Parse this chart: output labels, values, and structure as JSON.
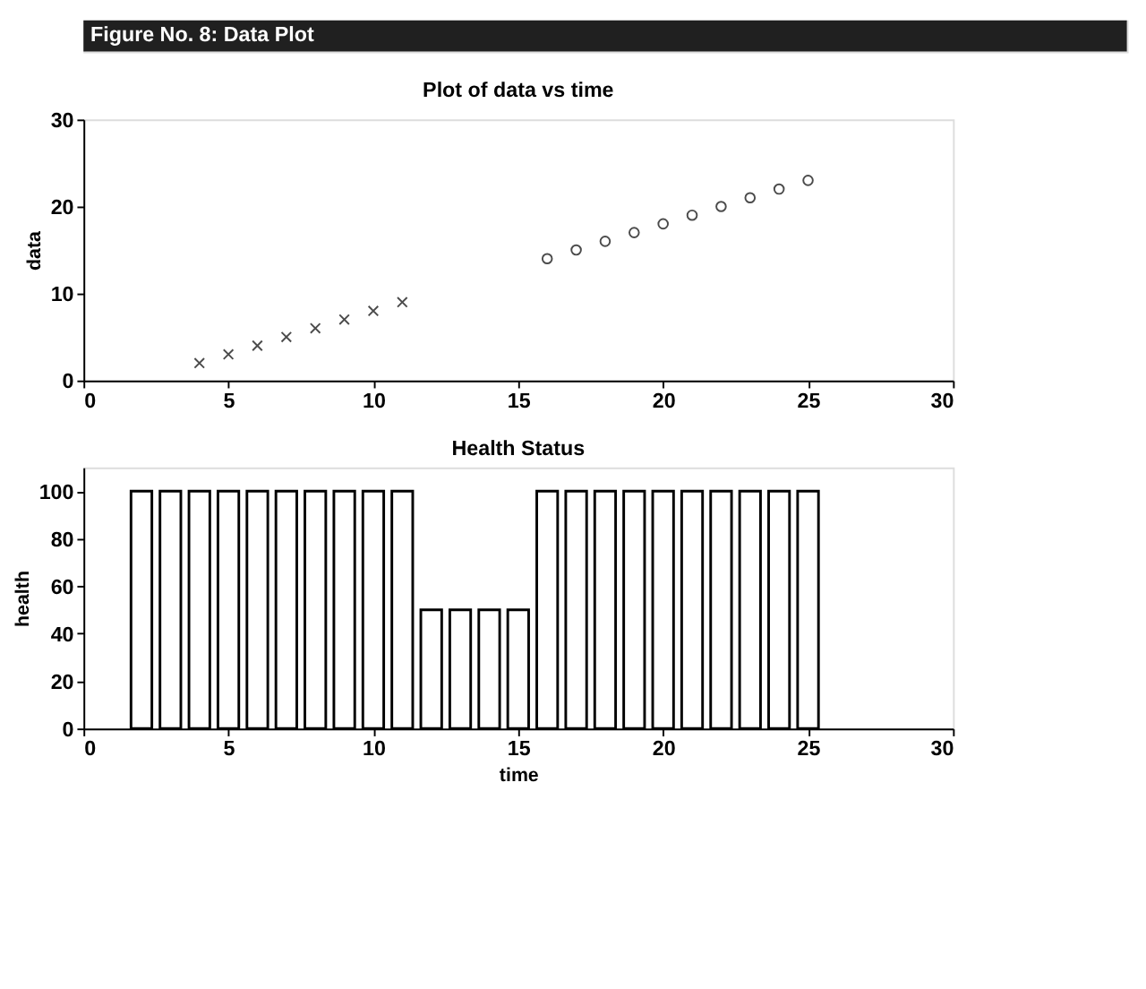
{
  "chart_data": [
    {
      "type": "scatter",
      "title": "Plot of data vs time",
      "ylabel": "data",
      "annotations": [
        "Figure No. 8: Data Plot"
      ],
      "xlim": [
        0,
        30
      ],
      "xticks": [
        0,
        5,
        10,
        15,
        20,
        25,
        30
      ],
      "ylim": [
        0,
        30
      ],
      "yticks": [
        0,
        10,
        20,
        30
      ],
      "grid": false,
      "series": [
        {
          "color": "#000000",
          "marker": "cross",
          "x": [
            4,
            5,
            6,
            7,
            8,
            9,
            10,
            11
          ],
          "values": [
            2,
            3,
            4,
            5,
            6,
            7,
            8,
            9
          ]
        },
        {
          "color": "#000000",
          "marker": "circle",
          "x": [
            16,
            17,
            18,
            19,
            20,
            21,
            22,
            23,
            24,
            25
          ],
          "values": [
            14,
            15,
            16,
            17,
            18,
            19,
            20,
            21,
            22,
            23
          ]
        }
      ]
    },
    {
      "type": "bar",
      "title": "Health Status",
      "xlabel": "time",
      "ylabel": "health",
      "color": "#000000",
      "x": [
        2,
        3,
        4,
        5,
        6,
        7,
        8,
        9,
        10,
        11,
        12,
        13,
        14,
        15,
        16,
        17,
        18,
        19,
        20,
        21,
        22,
        23,
        24,
        25
      ],
      "values": [
        100,
        100,
        100,
        100,
        100,
        100,
        100,
        100,
        100,
        100,
        50,
        50,
        50,
        50,
        100,
        100,
        100,
        100,
        100,
        100,
        100,
        100,
        100,
        100
      ],
      "xlim": [
        0,
        30
      ],
      "xticks": [
        0,
        5,
        10,
        15,
        20,
        25,
        30
      ],
      "ylim": [
        0,
        110
      ],
      "yticks": [
        0,
        20,
        40,
        60,
        80,
        100
      ],
      "grid": false
    }
  ]
}
